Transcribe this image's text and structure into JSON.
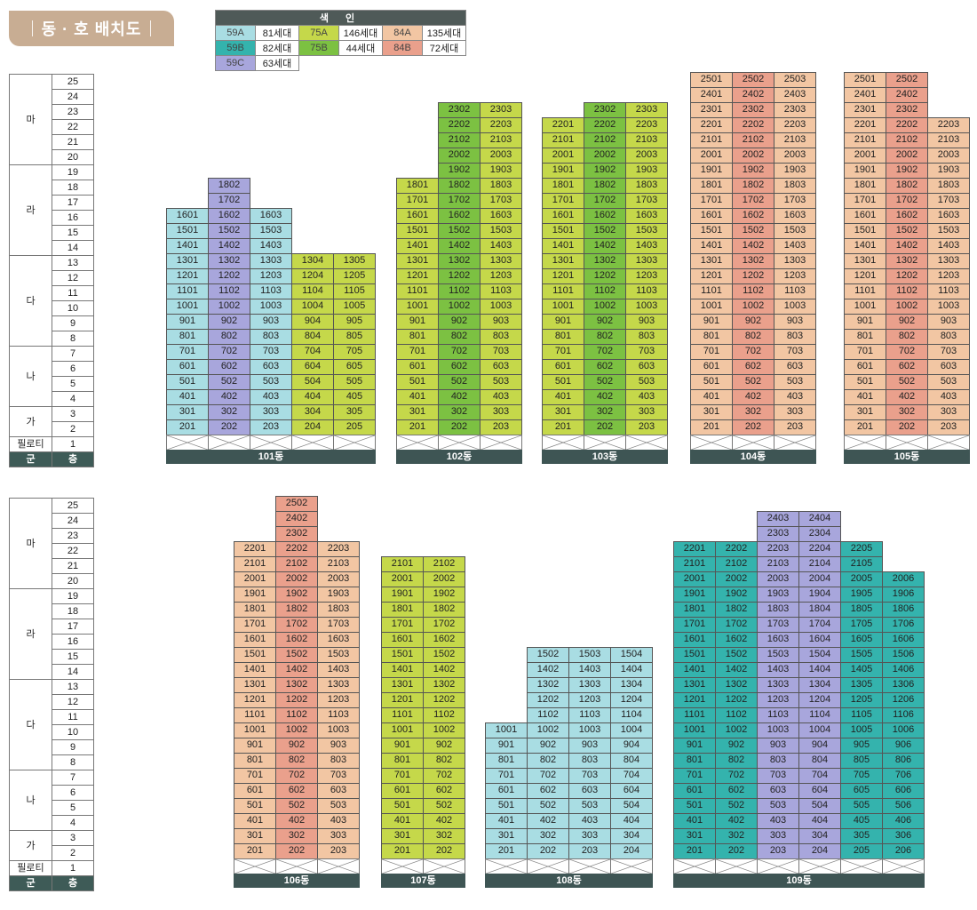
{
  "title": "동 · 호 배치도",
  "legend": {
    "header": "색 인",
    "items": [
      {
        "type": "59A",
        "count": "81세대",
        "color": "#a9dde3"
      },
      {
        "type": "75A",
        "count": "146세대",
        "color": "#c5d84a"
      },
      {
        "type": "84A",
        "count": "135세대",
        "color": "#f2c6a3"
      },
      {
        "type": "59B",
        "count": "82세대",
        "color": "#34b3ad"
      },
      {
        "type": "75B",
        "count": "44세대",
        "color": "#7cc142"
      },
      {
        "type": "84B",
        "count": "72세대",
        "color": "#eaa08c"
      },
      {
        "type": "59C",
        "count": "63세대",
        "color": "#a8a6dc"
      }
    ]
  },
  "floor_table": {
    "header_group": "군",
    "header_floor": "층",
    "piloti": "필로티",
    "groups": [
      {
        "label": "마",
        "top": 25,
        "bottom": 20
      },
      {
        "label": "라",
        "top": 19,
        "bottom": 14
      },
      {
        "label": "다",
        "top": 13,
        "bottom": 8
      },
      {
        "label": "나",
        "top": 7,
        "bottom": 4
      },
      {
        "label": "가",
        "top": 3,
        "bottom": 2
      }
    ]
  },
  "buildings": [
    {
      "name": "101동",
      "section": 0,
      "columns": [
        {
          "line": "01",
          "type": "59A",
          "top": 16
        },
        {
          "line": "02",
          "type": "59C",
          "top": 18
        },
        {
          "line": "03",
          "type": "59A",
          "top": 16
        },
        {
          "line": "04",
          "type": "75A",
          "top": 13
        },
        {
          "line": "05",
          "type": "75A",
          "top": 13
        }
      ]
    },
    {
      "name": "102동",
      "section": 0,
      "columns": [
        {
          "line": "01",
          "type": "75A",
          "top": 18
        },
        {
          "line": "02",
          "type": "75B",
          "top": 23
        },
        {
          "line": "03",
          "type": "75A",
          "top": 23
        }
      ]
    },
    {
      "name": "103동",
      "section": 0,
      "columns": [
        {
          "line": "01",
          "type": "75A",
          "top": 22
        },
        {
          "line": "02",
          "type": "75B",
          "top": 23
        },
        {
          "line": "03",
          "type": "75A",
          "top": 23
        }
      ]
    },
    {
      "name": "104동",
      "section": 0,
      "columns": [
        {
          "line": "01",
          "type": "84A",
          "top": 25
        },
        {
          "line": "02",
          "type": "84B",
          "top": 25
        },
        {
          "line": "03",
          "type": "84A",
          "top": 25
        }
      ]
    },
    {
      "name": "105동",
      "section": 0,
      "columns": [
        {
          "line": "01",
          "type": "84A",
          "top": 25
        },
        {
          "line": "02",
          "type": "84B",
          "top": 25
        },
        {
          "line": "03",
          "type": "84A",
          "top": 22
        }
      ]
    },
    {
      "name": "106동",
      "section": 1,
      "columns": [
        {
          "line": "01",
          "type": "84A",
          "top": 22
        },
        {
          "line": "02",
          "type": "84B",
          "top": 25
        },
        {
          "line": "03",
          "type": "84A",
          "top": 22
        }
      ]
    },
    {
      "name": "107동",
      "section": 1,
      "columns": [
        {
          "line": "01",
          "type": "75A",
          "top": 21
        },
        {
          "line": "02",
          "type": "75A",
          "top": 21
        }
      ]
    },
    {
      "name": "108동",
      "section": 1,
      "columns": [
        {
          "line": "01",
          "type": "59A",
          "top": 10
        },
        {
          "line": "02",
          "type": "59A",
          "top": 15
        },
        {
          "line": "03",
          "type": "59A",
          "top": 15
        },
        {
          "line": "04",
          "type": "59A",
          "top": 15
        }
      ]
    },
    {
      "name": "109동",
      "section": 1,
      "columns": [
        {
          "line": "01",
          "type": "59B",
          "top": 22
        },
        {
          "line": "02",
          "type": "59B",
          "top": 22
        },
        {
          "line": "03",
          "type": "59C",
          "top": 24
        },
        {
          "line": "04",
          "type": "59C",
          "top": 24
        },
        {
          "line": "05",
          "type": "59B",
          "top": 22
        },
        {
          "line": "06",
          "type": "59B",
          "top": 20
        }
      ]
    }
  ]
}
